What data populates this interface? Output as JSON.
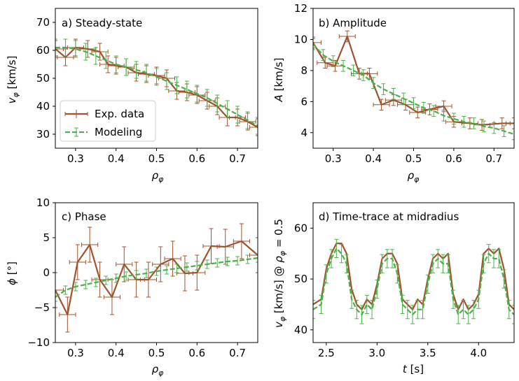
{
  "colors": {
    "exp": "#a0522d",
    "model": "#4daf4a"
  },
  "legend": {
    "exp_label": "Exp. data",
    "model_label": "Modeling"
  },
  "chart_data": [
    {
      "type": "line",
      "title": "a) Steady-state",
      "xlabel": "ρ_φ",
      "ylabel": "v_φ [km/s]",
      "xlim": [
        0.25,
        0.75
      ],
      "ylim": [
        25,
        75
      ],
      "xticks": [
        0.3,
        0.4,
        0.5,
        0.6,
        0.7
      ],
      "xtick_labels": [
        "0.3",
        "0.4",
        "0.5",
        "0.6",
        "0.7"
      ],
      "yticks": [
        30,
        40,
        50,
        60,
        70
      ],
      "ytick_labels": [
        "30",
        "40",
        "50",
        "60",
        "70"
      ],
      "legend": "lower-left",
      "series": [
        {
          "name": "Exp. data",
          "style": "solid-errorbar",
          "x": [
            0.25,
            0.275,
            0.3,
            0.33,
            0.36,
            0.38,
            0.4,
            0.425,
            0.45,
            0.475,
            0.5,
            0.525,
            0.55,
            0.575,
            0.6,
            0.625,
            0.65,
            0.675,
            0.7,
            0.725,
            0.75
          ],
          "y": [
            60.5,
            57.5,
            61,
            60.5,
            59.5,
            55,
            54.5,
            54,
            52,
            51.5,
            51,
            50,
            45.5,
            45,
            44,
            42,
            40,
            36,
            36,
            34.5,
            32.5
          ],
          "xerr": 0.02,
          "yerr": 3
        },
        {
          "name": "Modeling",
          "style": "dashed-errorbar",
          "x": [
            0.25,
            0.275,
            0.3,
            0.325,
            0.35,
            0.375,
            0.4,
            0.425,
            0.45,
            0.475,
            0.5,
            0.525,
            0.55,
            0.575,
            0.6,
            0.625,
            0.65,
            0.675,
            0.7,
            0.725,
            0.75
          ],
          "y": [
            61,
            61,
            60.5,
            59.5,
            58,
            56.5,
            55,
            54,
            53,
            52,
            50.5,
            49,
            47.5,
            46,
            44.5,
            43,
            41,
            39,
            37,
            35,
            33
          ],
          "yerr": 3
        }
      ]
    },
    {
      "type": "line",
      "title": "b) Amplitude",
      "xlabel": "ρ_φ",
      "ylabel": "A [km/s]",
      "xlim": [
        0.25,
        0.75
      ],
      "ylim": [
        3,
        12
      ],
      "xticks": [
        0.3,
        0.4,
        0.5,
        0.6,
        0.7
      ],
      "xtick_labels": [
        "0.3",
        "0.4",
        "0.5",
        "0.6",
        "0.7"
      ],
      "yticks": [
        4,
        6,
        8,
        10,
        12
      ],
      "ytick_labels": [
        "4",
        "6",
        "8",
        "10",
        "12"
      ],
      "series": [
        {
          "name": "Exp. data",
          "style": "solid-errorbar",
          "x": [
            0.25,
            0.28,
            0.305,
            0.335,
            0.365,
            0.39,
            0.42,
            0.45,
            0.48,
            0.51,
            0.54,
            0.575,
            0.6,
            0.64,
            0.67,
            0.72,
            0.75
          ],
          "y": [
            9.8,
            8.5,
            8.3,
            10.2,
            7.8,
            7.8,
            5.8,
            6.1,
            5.8,
            5.3,
            5.5,
            5.7,
            4.7,
            4.6,
            4.5,
            4.6,
            4.6
          ],
          "xerr": 0.02,
          "yerr": 0.35
        },
        {
          "name": "Modeling",
          "style": "dashed-errorbar",
          "x": [
            0.25,
            0.275,
            0.3,
            0.325,
            0.35,
            0.375,
            0.4,
            0.425,
            0.45,
            0.475,
            0.5,
            0.525,
            0.55,
            0.575,
            0.6,
            0.625,
            0.65,
            0.675,
            0.7,
            0.725,
            0.75
          ],
          "y": [
            9.7,
            9.0,
            8.6,
            8.3,
            8.0,
            7.7,
            7.2,
            6.8,
            6.5,
            6.2,
            5.9,
            5.6,
            5.4,
            5.1,
            4.9,
            4.7,
            4.6,
            4.4,
            4.3,
            4.1,
            3.9
          ],
          "yerr": 0.35
        }
      ]
    },
    {
      "type": "line",
      "title": "c) Phase",
      "xlabel": "ρ_φ",
      "ylabel": "ϕ [°]",
      "xlim": [
        0.25,
        0.75
      ],
      "ylim": [
        -10,
        10
      ],
      "xticks": [
        0.3,
        0.4,
        0.5,
        0.6,
        0.7
      ],
      "xtick_labels": [
        "0.3",
        "0.4",
        "0.5",
        "0.6",
        "0.7"
      ],
      "yticks": [
        -10,
        -5,
        0,
        5,
        10
      ],
      "ytick_labels": [
        "−10",
        "−5",
        "0",
        "5",
        "10"
      ],
      "series": [
        {
          "name": "Exp. data",
          "style": "solid-errorbar",
          "x": [
            0.25,
            0.28,
            0.305,
            0.335,
            0.36,
            0.39,
            0.42,
            0.45,
            0.48,
            0.51,
            0.54,
            0.57,
            0.6,
            0.635,
            0.67,
            0.71,
            0.75
          ],
          "y": [
            -2.5,
            -6,
            1.5,
            4,
            -1,
            -3.5,
            1.2,
            -1,
            -1,
            1.2,
            2,
            -0.1,
            0,
            3.8,
            3.7,
            4.5,
            2.5
          ],
          "xerr": 0.02,
          "yerr": 2.5
        },
        {
          "name": "Modeling",
          "style": "dashed-errorbar",
          "x": [
            0.25,
            0.275,
            0.3,
            0.325,
            0.35,
            0.375,
            0.4,
            0.425,
            0.45,
            0.475,
            0.5,
            0.525,
            0.55,
            0.575,
            0.6,
            0.625,
            0.65,
            0.675,
            0.7,
            0.725,
            0.75
          ],
          "y": [
            -3.5,
            -2.5,
            -2,
            -1.7,
            -1.4,
            -1.1,
            -0.8,
            -0.5,
            -0.3,
            -0.1,
            0.2,
            0.4,
            0.6,
            0.8,
            1.0,
            1.2,
            1.4,
            1.6,
            1.7,
            1.9,
            2.1
          ],
          "yerr": 0.6
        }
      ]
    },
    {
      "type": "line",
      "title": "d) Time-trace at midradius",
      "xlabel": "t [s]",
      "ylabel": "v_φ [km/s] @ ρ_φ = 0.5",
      "xlim": [
        2.37,
        4.35
      ],
      "ylim": [
        37.5,
        65
      ],
      "xticks": [
        2.5,
        3.0,
        3.5,
        4.0
      ],
      "xtick_labels": [
        "2.5",
        "3.0",
        "3.5",
        "4.0"
      ],
      "yticks": [
        40,
        50,
        60
      ],
      "ytick_labels": [
        "40",
        "50",
        "60"
      ],
      "series": [
        {
          "name": "Exp. data",
          "style": "solid",
          "x": [
            2.37,
            2.45,
            2.5,
            2.55,
            2.6,
            2.65,
            2.7,
            2.75,
            2.8,
            2.85,
            2.9,
            2.95,
            3.0,
            3.05,
            3.1,
            3.15,
            3.2,
            3.25,
            3.3,
            3.35,
            3.4,
            3.45,
            3.5,
            3.55,
            3.6,
            3.65,
            3.7,
            3.75,
            3.8,
            3.85,
            3.9,
            3.95,
            4.0,
            4.05,
            4.1,
            4.15,
            4.2,
            4.25,
            4.3,
            4.35
          ],
          "y": [
            45,
            46,
            52,
            55,
            57,
            57,
            55,
            48,
            45,
            44,
            46,
            45,
            49,
            54,
            55,
            55,
            53,
            46,
            45,
            44,
            46,
            45,
            50,
            54,
            55,
            54,
            55,
            47,
            44,
            46,
            44,
            45,
            47,
            55,
            56,
            55,
            56,
            52,
            45,
            44
          ]
        },
        {
          "name": "Modeling",
          "style": "dashed-errorbar",
          "x": [
            2.37,
            2.45,
            2.5,
            2.55,
            2.6,
            2.65,
            2.7,
            2.75,
            2.8,
            2.85,
            2.9,
            2.95,
            3.0,
            3.05,
            3.1,
            3.15,
            3.2,
            3.25,
            3.3,
            3.35,
            3.4,
            3.45,
            3.5,
            3.55,
            3.6,
            3.65,
            3.7,
            3.75,
            3.8,
            3.85,
            3.9,
            3.95,
            4.0,
            4.05,
            4.1,
            4.15,
            4.2,
            4.25,
            4.3,
            4.35
          ],
          "y": [
            44,
            45,
            51,
            54,
            56,
            55,
            53,
            46,
            44,
            43,
            45,
            44,
            48,
            53,
            54,
            54,
            51,
            45,
            44,
            43,
            44,
            44,
            49,
            53,
            54,
            53,
            53,
            46,
            43,
            44,
            43,
            44,
            46,
            53,
            55,
            54,
            54,
            50,
            44,
            43
          ],
          "yerr": 1.8
        }
      ]
    }
  ]
}
